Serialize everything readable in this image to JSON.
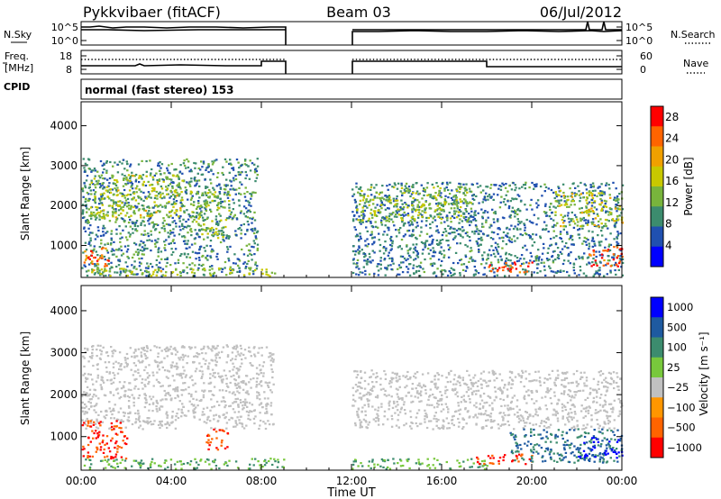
{
  "header": {
    "radar": "Pykkvibaer (fitACF)",
    "beam": "Beam 03",
    "date": "06/Jul/2012"
  },
  "meta_panels": {
    "nsky_label": "N.Sky",
    "nsearch_label": "N.Search",
    "noise_ticks": [
      "10^5",
      "10^0"
    ],
    "freq_label_line1": "Freq.",
    "freq_label_line2": "[MHz]",
    "freq_ticks": [
      "18",
      "8"
    ],
    "nave_label": "Nave",
    "nave_ticks": [
      "60",
      "0"
    ],
    "cpid_label": "CPID",
    "cpid_text": "normal (fast stereo) 153"
  },
  "chart_data": [
    {
      "type": "heatmap",
      "title": "",
      "xlabel": "Time UT",
      "ylabel": "Slant Range [km]",
      "x_ticks": [
        "00:00",
        "04:00",
        "08:00",
        "12:00",
        "16:00",
        "20:00",
        "00:00"
      ],
      "xlim": [
        0,
        24
      ],
      "ylim": [
        200,
        4600
      ],
      "y_ticks": [
        1000,
        2000,
        3000,
        4000
      ],
      "colorbar_label": "Power [dB]",
      "colorbar_ticks": [
        4,
        8,
        12,
        16,
        20,
        24,
        28
      ],
      "colorbar_range": [
        0,
        30
      ],
      "colors": [
        "#0000ff",
        "#2050b0",
        "#3c8c6e",
        "#78b43c",
        "#c8c800",
        "#f0a000",
        "#ff6400",
        "#ff0000"
      ],
      "data_gap": [
        9.0,
        12.0
      ],
      "scatter_regions": [
        {
          "t": [
            0.0,
            7.8
          ],
          "r": [
            250,
            3200
          ],
          "value": 9
        },
        {
          "t": [
            0.3,
            4.5
          ],
          "r": [
            1700,
            2800
          ],
          "value": 15
        },
        {
          "t": [
            0.0,
            1.2
          ],
          "r": [
            500,
            1000
          ],
          "value": 24
        },
        {
          "t": [
            0.2,
            8.7
          ],
          "r": [
            250,
            450
          ],
          "value": 15
        },
        {
          "t": [
            4.8,
            6.6
          ],
          "r": [
            1200,
            2400
          ],
          "value": 14
        },
        {
          "t": [
            12.0,
            24.0
          ],
          "r": [
            250,
            2600
          ],
          "value": 8
        },
        {
          "t": [
            12.2,
            17.3
          ],
          "r": [
            1600,
            2500
          ],
          "value": 14
        },
        {
          "t": [
            17.8,
            20.0
          ],
          "r": [
            350,
            600
          ],
          "value": 26
        },
        {
          "t": [
            21.0,
            24.0
          ],
          "r": [
            1500,
            2400
          ],
          "value": 16
        },
        {
          "t": [
            22.5,
            24.0
          ],
          "r": [
            500,
            1000
          ],
          "value": 26
        }
      ]
    },
    {
      "type": "heatmap",
      "title": "",
      "xlabel": "Time UT",
      "ylabel": "Slant Range [km]",
      "x_ticks": [
        "00:00",
        "04:00",
        "08:00",
        "12:00",
        "16:00",
        "20:00",
        "00:00"
      ],
      "xlim": [
        0,
        24
      ],
      "ylim": [
        200,
        4600
      ],
      "y_ticks": [
        1000,
        2000,
        3000,
        4000
      ],
      "colorbar_label": "Velocity [m s⁻¹]",
      "colorbar_ticks": [
        "1000",
        "500",
        "100",
        "25",
        "−25",
        "−100",
        "−500",
        "−1000"
      ],
      "colors": [
        "#0000ff",
        "#1e5aa0",
        "#3c8c6e",
        "#78c83c",
        "#c0c0c0",
        "#ff9600",
        "#ff6400",
        "#ff0000"
      ],
      "data_gap": [
        9.0,
        12.0
      ],
      "scatter_regions": [
        {
          "t": [
            0.0,
            8.5
          ],
          "r": [
            1200,
            3200
          ],
          "value": 0
        },
        {
          "t": [
            0.0,
            2.0
          ],
          "r": [
            500,
            1400
          ],
          "value": -300
        },
        {
          "t": [
            0.0,
            9.0
          ],
          "r": [
            250,
            500
          ],
          "value": 60
        },
        {
          "t": [
            5.5,
            6.5
          ],
          "r": [
            700,
            1200
          ],
          "value": -300
        },
        {
          "t": [
            12.0,
            24.0
          ],
          "r": [
            1200,
            2600
          ],
          "value": 0
        },
        {
          "t": [
            12.0,
            18.0
          ],
          "r": [
            250,
            500
          ],
          "value": 60
        },
        {
          "t": [
            17.5,
            20.0
          ],
          "r": [
            350,
            600
          ],
          "value": -300
        },
        {
          "t": [
            19.0,
            24.0
          ],
          "r": [
            400,
            1200
          ],
          "value": 300
        },
        {
          "t": [
            22.0,
            24.0
          ],
          "r": [
            500,
            1000
          ],
          "value": 800
        }
      ]
    }
  ]
}
